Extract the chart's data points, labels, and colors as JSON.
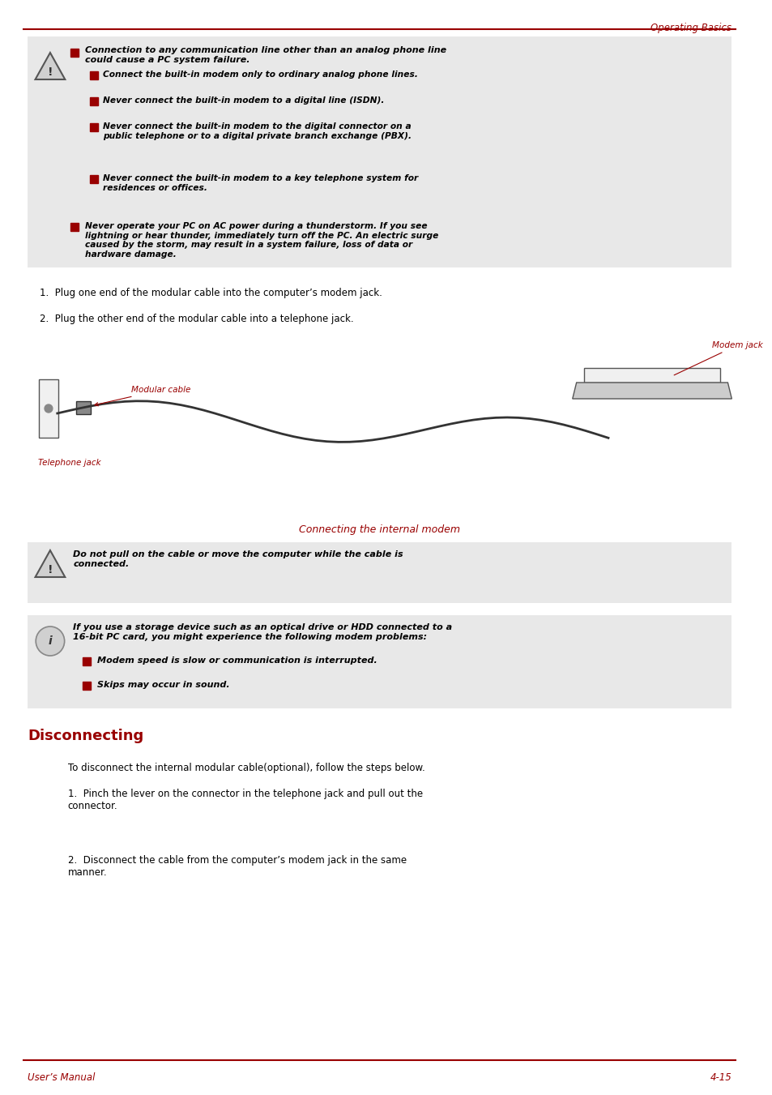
{
  "page_width": 9.54,
  "page_height": 13.51,
  "bg_color": "#ffffff",
  "header_text": "Operating Basics",
  "header_color": "#990000",
  "header_line_color": "#990000",
  "footer_left": "User’s Manual",
  "footer_right": "4-15",
  "footer_color": "#990000",
  "footer_line_color": "#990000",
  "section_title": "Disconnecting",
  "section_title_color": "#990000",
  "warning_bg": "#e8e8e8",
  "bullet_color": "#990000",
  "text_color": "#000000",
  "caption_color": "#990000",
  "warning1_lines": [
    "Connection to any communication line other than an analog phone line",
    "could cause a PC system failure."
  ],
  "warning1_sub": [
    "Connect the built-in modem only to ordinary analog phone lines.",
    "Never connect the built-in modem to a digital line (ISDN).",
    "Never connect the built-in modem to the digital connector on a\npublic telephone or to a digital private branch exchange (PBX).",
    "Never connect the built-in modem to a key telephone system for\nresidences or offices."
  ],
  "warning1_main2": [
    "Never operate your PC on AC power during a thunderstorm. If you see",
    "lightning or hear thunder, immediately turn off the PC. An electric surge",
    "caused by the storm, may result in a system failure, loss of data or",
    "hardware damage."
  ],
  "numbered_items": [
    "Plug one end of the modular cable into the computer’s modem jack.",
    "Plug the other end of the modular cable into a telephone jack."
  ],
  "caption": "Connecting the internal modem",
  "warning2_text": "Do not pull on the cable or move the computer while the cable is\nconnected.",
  "info_lines": [
    "If you use a storage device such as an optical drive or HDD connected to a",
    "16-bit PC card, you might experience the following modem problems:"
  ],
  "info_bullets": [
    "Modem speed is slow or communication is interrupted.",
    "Skips may occur in sound."
  ],
  "disconnecting_intro": "To disconnect the internal modular cable(optional), follow the steps below.",
  "disconnecting_steps": [
    "Pinch the lever on the connector in the telephone jack and pull out the\nconnector.",
    "Disconnect the cable from the computer’s modem jack in the same\nmanner."
  ],
  "modem_jack_label": "Modem jack",
  "modular_cable_label": "Modular cable",
  "telephone_jack_label": "Telephone jack"
}
